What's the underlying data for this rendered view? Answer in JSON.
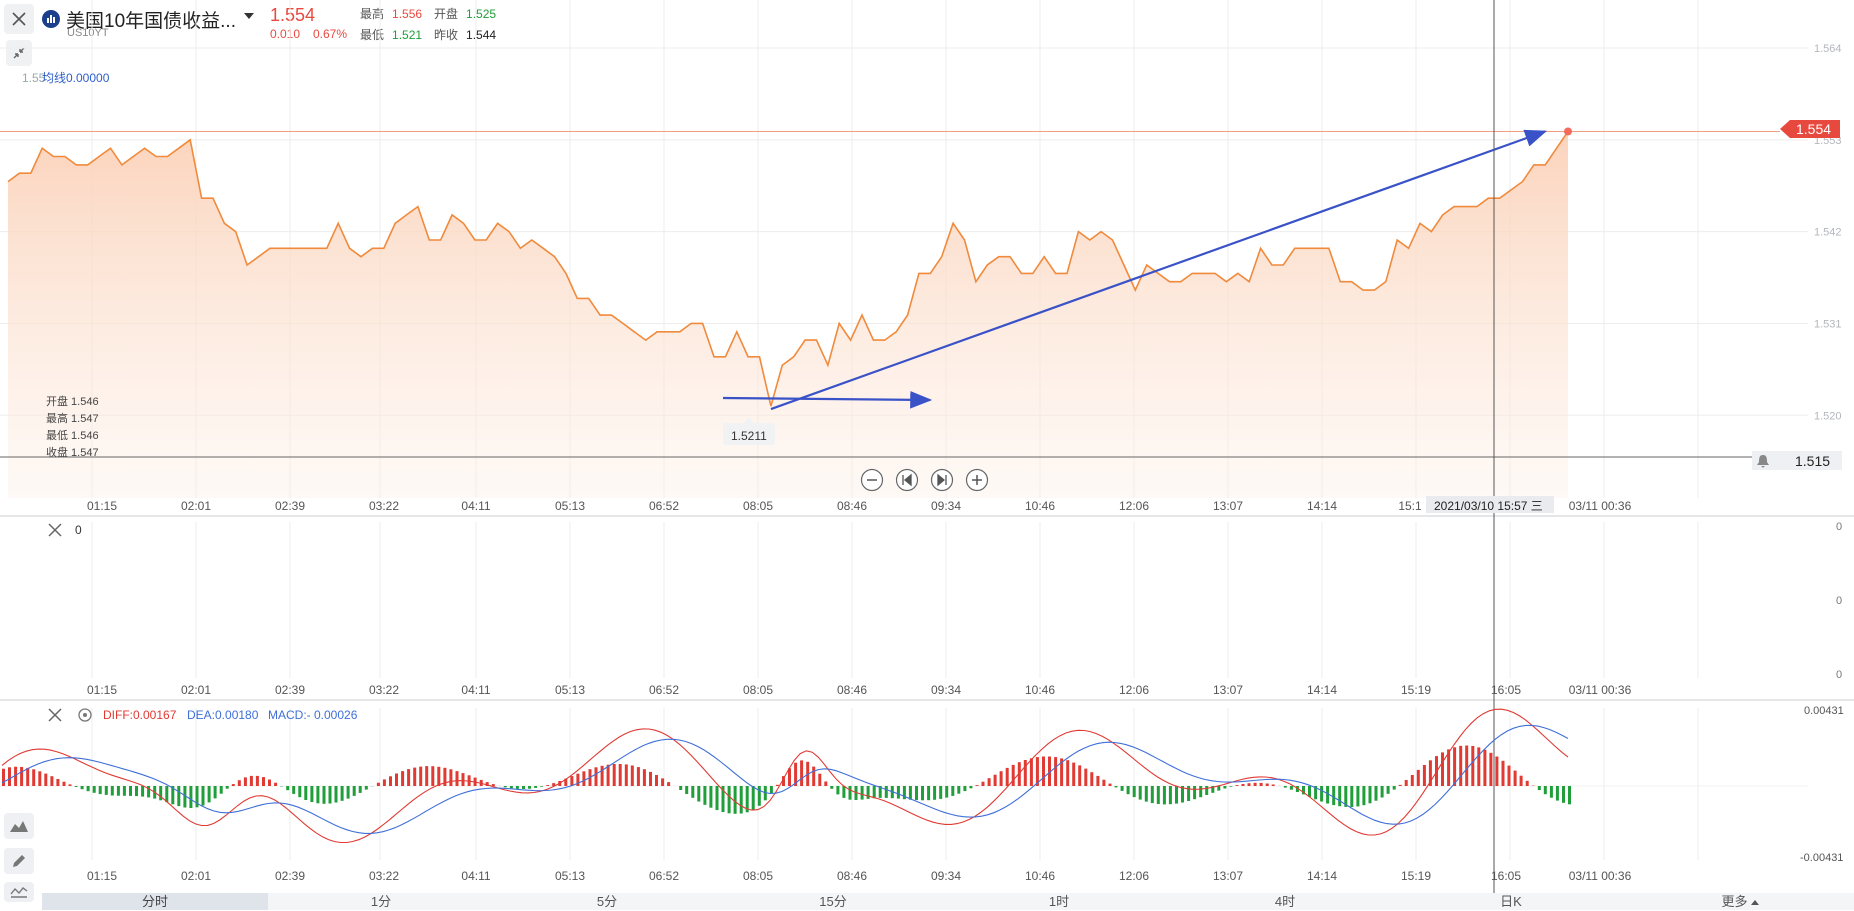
{
  "header": {
    "title": "美国10年国债收益...",
    "symbol": "US10YT",
    "price": "1.554",
    "change": "0.010",
    "change_pct": "0.67%",
    "high_label": "最高",
    "high": "1.556",
    "open_label": "开盘",
    "open": "1.525",
    "low_label": "最低",
    "low": "1.521",
    "prev_label": "昨收",
    "prev": "1.544"
  },
  "indicator_bar": {
    "ma_label": "均线0.00000",
    "ma_prefix": "1.55"
  },
  "ohlc_info": {
    "open": "开盘 1.546",
    "high": "最高 1.547",
    "low": "最低 1.546",
    "close": "收盘 1.547"
  },
  "price_tags": {
    "current": "1.554",
    "alert": "1.515",
    "marker": "1.5211"
  },
  "crosshair_time": "2021/03/10 15:57 三",
  "volume_pane": {
    "value": "0",
    "axis_top": "0",
    "axis_mid": "0",
    "axis_bottom": "0"
  },
  "macd_pane": {
    "diff": "DIFF:0.00167",
    "dea": "DEA:0.00180",
    "macd": "MACD:- 0.00026",
    "axis_max": "0.00431",
    "axis_min": "-0.00431"
  },
  "colors": {
    "line": "#f08a3c",
    "up": "#e03a33",
    "down": "#1f9e3a",
    "dea": "#3f6fd8",
    "arrow": "#3a52c7"
  },
  "tabs": [
    "分时",
    "1分",
    "5分",
    "15分",
    "1时",
    "4时",
    "日K"
  ],
  "more_label": "更多",
  "icons": [
    "close-icon",
    "shrink-icon",
    "chart-logo-icon",
    "bell-icon",
    "zoom-out-icon",
    "step-back-icon",
    "step-forward-icon",
    "zoom-in-icon",
    "area-chart-icon",
    "pencil-icon",
    "indicator-icon",
    "gear-icon"
  ],
  "chart_data": [
    {
      "type": "area",
      "y_ticks": [
        "1.564",
        "1.553",
        "1.542",
        "1.531",
        "1.520"
      ],
      "x_ticks": [
        "01:15",
        "02:01",
        "02:39",
        "03:22",
        "04:11",
        "05:13",
        "06:52",
        "08:05",
        "08:46",
        "09:34",
        "10:46",
        "12:06",
        "13:07",
        "14:14",
        "15:1",
        "03/11 00:36"
      ],
      "ylim": [
        1.515,
        1.564
      ],
      "values": [
        1.548,
        1.549,
        1.549,
        1.552,
        1.551,
        1.551,
        1.55,
        1.55,
        1.551,
        1.552,
        1.55,
        1.551,
        1.552,
        1.551,
        1.551,
        1.552,
        1.553,
        1.546,
        1.546,
        1.543,
        1.542,
        1.538,
        1.539,
        1.54,
        1.54,
        1.54,
        1.54,
        1.54,
        1.54,
        1.543,
        1.54,
        1.539,
        1.54,
        1.54,
        1.543,
        1.544,
        1.545,
        1.541,
        1.541,
        1.544,
        1.543,
        1.541,
        1.541,
        1.543,
        1.542,
        1.54,
        1.541,
        1.54,
        1.539,
        1.537,
        1.534,
        1.534,
        1.532,
        1.532,
        1.531,
        1.53,
        1.529,
        1.53,
        1.53,
        1.53,
        1.531,
        1.531,
        1.527,
        1.527,
        1.53,
        1.527,
        1.527,
        1.5211,
        1.526,
        1.527,
        1.529,
        1.529,
        1.526,
        1.531,
        1.529,
        1.532,
        1.529,
        1.529,
        1.53,
        1.532,
        1.537,
        1.537,
        1.539,
        1.543,
        1.541,
        1.536,
        1.538,
        1.539,
        1.539,
        1.537,
        1.537,
        1.539,
        1.537,
        1.537,
        1.542,
        1.541,
        1.542,
        1.541,
        1.538,
        1.535,
        1.538,
        1.537,
        1.536,
        1.536,
        1.537,
        1.537,
        1.537,
        1.536,
        1.537,
        1.536,
        1.54,
        1.538,
        1.538,
        1.54,
        1.54,
        1.54,
        1.54,
        1.536,
        1.536,
        1.535,
        1.535,
        1.536,
        1.541,
        1.54,
        1.543,
        1.542,
        1.544,
        1.545,
        1.545,
        1.545,
        1.546,
        1.546,
        1.547,
        1.548,
        1.55,
        1.55,
        1.552,
        1.554
      ],
      "current_price": 1.554,
      "alert_price": 1.515,
      "marker_price": 1.5211
    },
    {
      "type": "bar",
      "name": "MACD",
      "ylim": [
        -0.00431,
        0.00431
      ],
      "x_ticks": [
        "01:15",
        "02:01",
        "02:39",
        "03:22",
        "04:11",
        "05:13",
        "06:52",
        "08:05",
        "08:46",
        "09:34",
        "10:46",
        "12:06",
        "13:07",
        "14:14",
        "15:19",
        "16:05",
        "03/11 00:36"
      ],
      "diff": 0.00167,
      "dea": 0.0018,
      "macd": -0.00026
    }
  ]
}
